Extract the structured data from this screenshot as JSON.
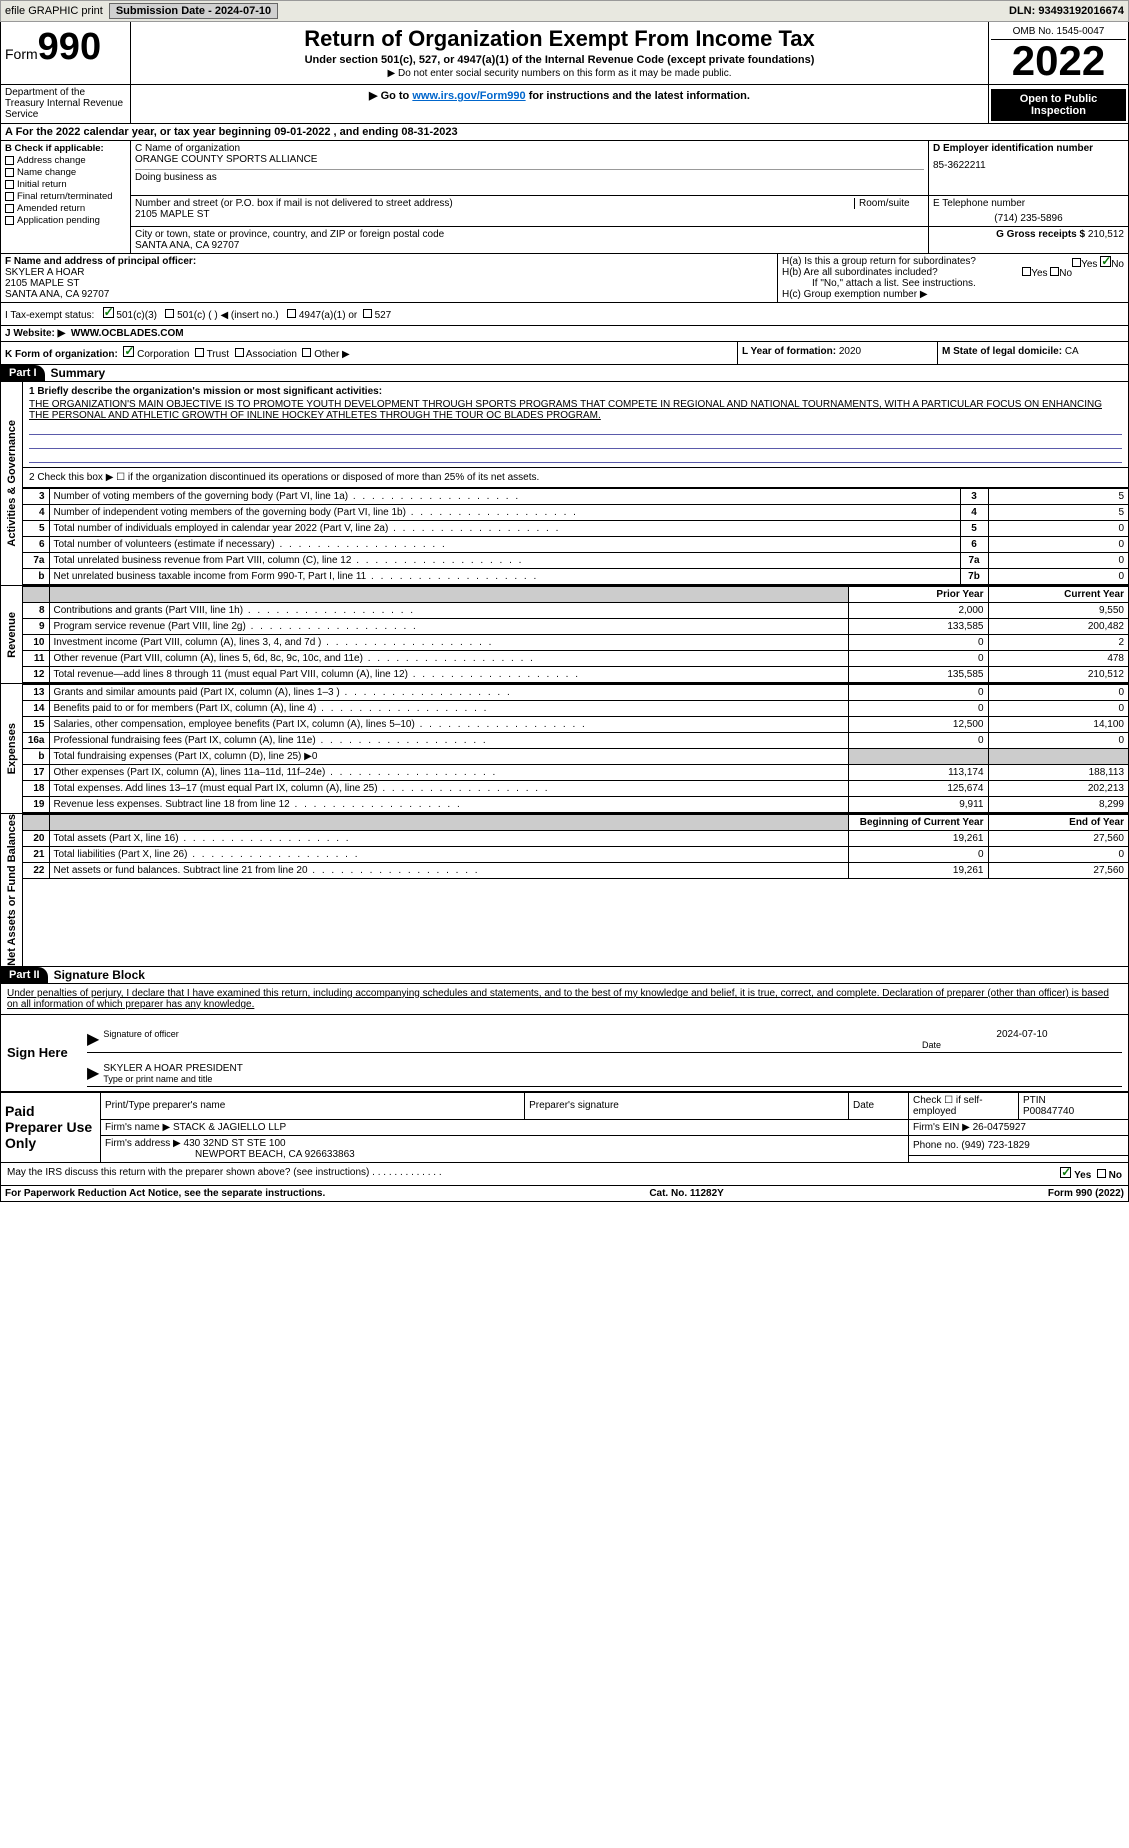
{
  "topbar": {
    "efile": "efile GRAPHIC print",
    "submission": "Submission Date - 2024-07-10",
    "dln": "DLN: 93493192016674"
  },
  "header": {
    "form": "Form",
    "form_num": "990",
    "title": "Return of Organization Exempt From Income Tax",
    "sub1": "Under section 501(c), 527, or 4947(a)(1) of the Internal Revenue Code (except private foundations)",
    "sub2": "▶ Do not enter social security numbers on this form as it may be made public.",
    "sub3": "▶ Go to www.irs.gov/Form990 for instructions and the latest information.",
    "link": "www.irs.gov/Form990",
    "omb": "OMB No. 1545-0047",
    "year": "2022",
    "open": "Open to Public Inspection",
    "dept": "Department of the Treasury Internal Revenue Service"
  },
  "row_a": "A For the 2022 calendar year, or tax year beginning 09-01-2022    , and ending 08-31-2023",
  "b": {
    "label": "B Check if applicable:",
    "items": [
      "Address change",
      "Name change",
      "Initial return",
      "Final return/terminated",
      "Amended return",
      "Application pending"
    ]
  },
  "c": {
    "name_label": "C Name of organization",
    "name": "ORANGE COUNTY SPORTS ALLIANCE",
    "dba_label": "Doing business as",
    "addr_label": "Number and street (or P.O. box if mail is not delivered to street address)",
    "room_label": "Room/suite",
    "addr": "2105 MAPLE ST",
    "city_label": "City or town, state or province, country, and ZIP or foreign postal code",
    "city": "SANTA ANA, CA  92707"
  },
  "d": {
    "label": "D Employer identification number",
    "val": "85-3622211"
  },
  "e": {
    "label": "E Telephone number",
    "val": "(714) 235-5896"
  },
  "g": {
    "label": "G Gross receipts $",
    "val": "210,512"
  },
  "f": {
    "label": "F Name and address of principal officer:",
    "name": "SKYLER A HOAR",
    "addr1": "2105 MAPLE ST",
    "addr2": "SANTA ANA, CA  92707"
  },
  "h": {
    "a": "H(a)  Is this a group return for subordinates?",
    "b": "H(b)  Are all subordinates included?",
    "b2": "If \"No,\" attach a list. See instructions.",
    "c": "H(c)  Group exemption number ▶",
    "yes": "Yes",
    "no": "No"
  },
  "i": {
    "label": "I   Tax-exempt status:",
    "opt1": "501(c)(3)",
    "opt2": "501(c) (  ) ◀ (insert no.)",
    "opt3": "4947(a)(1) or",
    "opt4": "527"
  },
  "j": {
    "label": "J   Website: ▶",
    "val": "WWW.OCBLADES.COM"
  },
  "k": {
    "label": "K Form of organization:",
    "opts": [
      "Corporation",
      "Trust",
      "Association",
      "Other ▶"
    ]
  },
  "l": {
    "label": "L Year of formation:",
    "val": "2020"
  },
  "m": {
    "label": "M State of legal domicile:",
    "val": "CA"
  },
  "part1": {
    "hdr": "Part I",
    "label": "Summary",
    "q1": "1  Briefly describe the organization's mission or most significant activities:",
    "q1_text": "THE ORGANIZATION'S MAIN OBJECTIVE IS TO PROMOTE YOUTH DEVELOPMENT THROUGH SPORTS PROGRAMS THAT COMPETE IN REGIONAL AND NATIONAL TOURNAMENTS, WITH A PARTICULAR FOCUS ON ENHANCING THE PERSONAL AND ATHLETIC GROWTH OF INLINE HOCKEY ATHLETES THROUGH THE TOUR OC BLADES PROGRAM.",
    "q2": "2   Check this box ▶ ☐  if the organization discontinued its operations or disposed of more than 25% of its net assets.",
    "sides": {
      "gov": "Activities & Governance",
      "rev": "Revenue",
      "exp": "Expenses",
      "net": "Net Assets or Fund Balances"
    },
    "rows_gov": [
      {
        "n": "3",
        "t": "Number of voting members of the governing body (Part VI, line 1a)",
        "ln": "3",
        "v": "5"
      },
      {
        "n": "4",
        "t": "Number of independent voting members of the governing body (Part VI, line 1b)",
        "ln": "4",
        "v": "5"
      },
      {
        "n": "5",
        "t": "Total number of individuals employed in calendar year 2022 (Part V, line 2a)",
        "ln": "5",
        "v": "0"
      },
      {
        "n": "6",
        "t": "Total number of volunteers (estimate if necessary)",
        "ln": "6",
        "v": "0"
      },
      {
        "n": "7a",
        "t": "Total unrelated business revenue from Part VIII, column (C), line 12",
        "ln": "7a",
        "v": "0"
      },
      {
        "n": "b",
        "t": "Net unrelated business taxable income from Form 990-T, Part I, line 11",
        "ln": "7b",
        "v": "0"
      }
    ],
    "col_hdr": {
      "py": "Prior Year",
      "cy": "Current Year",
      "boy": "Beginning of Current Year",
      "eoy": "End of Year"
    },
    "rows_rev": [
      {
        "n": "8",
        "t": "Contributions and grants (Part VIII, line 1h)",
        "py": "2,000",
        "cy": "9,550"
      },
      {
        "n": "9",
        "t": "Program service revenue (Part VIII, line 2g)",
        "py": "133,585",
        "cy": "200,482"
      },
      {
        "n": "10",
        "t": "Investment income (Part VIII, column (A), lines 3, 4, and 7d )",
        "py": "0",
        "cy": "2"
      },
      {
        "n": "11",
        "t": "Other revenue (Part VIII, column (A), lines 5, 6d, 8c, 9c, 10c, and 11e)",
        "py": "0",
        "cy": "478"
      },
      {
        "n": "12",
        "t": "Total revenue—add lines 8 through 11 (must equal Part VIII, column (A), line 12)",
        "py": "135,585",
        "cy": "210,512"
      }
    ],
    "rows_exp": [
      {
        "n": "13",
        "t": "Grants and similar amounts paid (Part IX, column (A), lines 1–3 )",
        "py": "0",
        "cy": "0"
      },
      {
        "n": "14",
        "t": "Benefits paid to or for members (Part IX, column (A), line 4)",
        "py": "0",
        "cy": "0"
      },
      {
        "n": "15",
        "t": "Salaries, other compensation, employee benefits (Part IX, column (A), lines 5–10)",
        "py": "12,500",
        "cy": "14,100"
      },
      {
        "n": "16a",
        "t": "Professional fundraising fees (Part IX, column (A), line 11e)",
        "py": "0",
        "cy": "0"
      },
      {
        "n": "b",
        "t": "Total fundraising expenses (Part IX, column (D), line 25) ▶0",
        "shade": true
      },
      {
        "n": "17",
        "t": "Other expenses (Part IX, column (A), lines 11a–11d, 11f–24e)",
        "py": "113,174",
        "cy": "188,113"
      },
      {
        "n": "18",
        "t": "Total expenses. Add lines 13–17 (must equal Part IX, column (A), line 25)",
        "py": "125,674",
        "cy": "202,213"
      },
      {
        "n": "19",
        "t": "Revenue less expenses. Subtract line 18 from line 12",
        "py": "9,911",
        "cy": "8,299"
      }
    ],
    "rows_net": [
      {
        "n": "20",
        "t": "Total assets (Part X, line 16)",
        "py": "19,261",
        "cy": "27,560"
      },
      {
        "n": "21",
        "t": "Total liabilities (Part X, line 26)",
        "py": "0",
        "cy": "0"
      },
      {
        "n": "22",
        "t": "Net assets or fund balances. Subtract line 21 from line 20",
        "py": "19,261",
        "cy": "27,560"
      }
    ]
  },
  "part2": {
    "hdr": "Part II",
    "label": "Signature Block",
    "penalty": "Under penalties of perjury, I declare that I have examined this return, including accompanying schedules and statements, and to the best of my knowledge and belief, it is true, correct, and complete. Declaration of preparer (other than officer) is based on all information of which preparer has any knowledge."
  },
  "sign": {
    "here": "Sign Here",
    "sig_label": "Signature of officer",
    "date_label": "Date",
    "date": "2024-07-10",
    "name": "SKYLER A HOAR  PRESIDENT",
    "type_label": "Type or print name and title"
  },
  "paid": {
    "label": "Paid Preparer Use Only",
    "h1": "Print/Type preparer's name",
    "h2": "Preparer's signature",
    "h3": "Date",
    "h4": "Check ☐ if self-employed",
    "h5": "PTIN",
    "ptin": "P00847740",
    "firm_label": "Firm's name    ▶",
    "firm": "STACK & JAGIELLO LLP",
    "ein_label": "Firm's EIN ▶",
    "ein": "26-0475927",
    "addr_label": "Firm's address ▶",
    "addr1": "430 32ND ST STE 100",
    "addr2": "NEWPORT BEACH, CA  926633863",
    "phone_label": "Phone no.",
    "phone": "(949) 723-1829"
  },
  "discuss": {
    "q": "May the IRS discuss this return with the preparer shown above? (see instructions)",
    "yes": "Yes",
    "no": "No"
  },
  "footer": {
    "left": "For Paperwork Reduction Act Notice, see the separate instructions.",
    "mid": "Cat. No. 11282Y",
    "right": "Form 990 (2022)"
  }
}
